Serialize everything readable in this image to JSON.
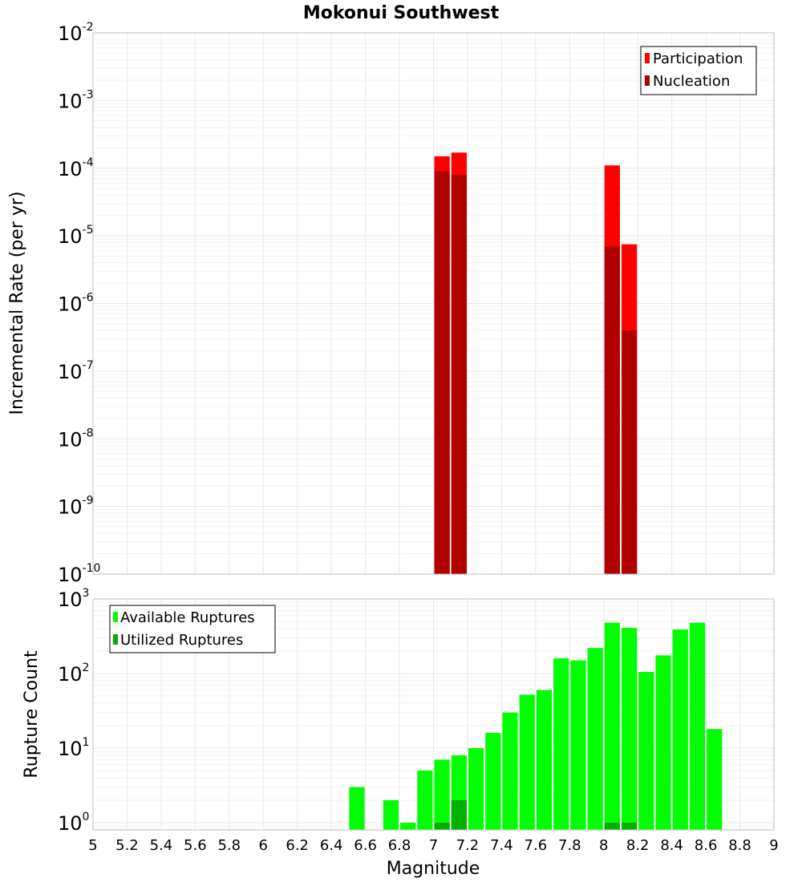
{
  "chart_data": [
    {
      "type": "bar",
      "title": "Mokonui Southwest",
      "xlabel": "",
      "ylabel": "Incremental Rate (per yr)",
      "yscale": "log",
      "ylim": [
        1e-10,
        0.01
      ],
      "xlim": [
        5,
        9
      ],
      "bin_width": 0.1,
      "y_tick_labels": [
        {
          "base": "10",
          "exp": "-10"
        },
        {
          "base": "10",
          "exp": "-9"
        },
        {
          "base": "10",
          "exp": "-8"
        },
        {
          "base": "10",
          "exp": "-7"
        },
        {
          "base": "10",
          "exp": "-6"
        },
        {
          "base": "10",
          "exp": "-5"
        },
        {
          "base": "10",
          "exp": "-4"
        },
        {
          "base": "10",
          "exp": "-3"
        },
        {
          "base": "10",
          "exp": "-2"
        }
      ],
      "grid": true,
      "legend_position": "top-right",
      "series": [
        {
          "name": "Participation",
          "color": "#ff0000",
          "x": [
            7.05,
            7.15,
            8.05,
            8.15
          ],
          "values": [
            0.00015,
            0.00017,
            0.00011,
            7.5e-06
          ]
        },
        {
          "name": "Nucleation",
          "color": "#b00000",
          "x": [
            7.05,
            7.15,
            8.05,
            8.15
          ],
          "values": [
            9e-05,
            8e-05,
            7e-06,
            4e-07
          ]
        }
      ]
    },
    {
      "type": "bar",
      "title": "",
      "xlabel": "Magnitude",
      "ylabel": "Rupture Count",
      "yscale": "log",
      "ylim": [
        0.8,
        1000
      ],
      "xlim": [
        5,
        9
      ],
      "bin_width": 0.1,
      "x_tick_labels": [
        "5",
        "5.2",
        "5.4",
        "5.6",
        "5.8",
        "6",
        "6.2",
        "6.4",
        "6.6",
        "6.8",
        "7",
        "7.2",
        "7.4",
        "7.6",
        "7.8",
        "8",
        "8.2",
        "8.4",
        "8.6",
        "8.8",
        "9"
      ],
      "y_tick_labels": [
        {
          "base": "10",
          "exp": "0"
        },
        {
          "base": "10",
          "exp": "1"
        },
        {
          "base": "10",
          "exp": "2"
        },
        {
          "base": "10",
          "exp": "3"
        }
      ],
      "grid": true,
      "legend_position": "top-left",
      "series": [
        {
          "name": "Available Ruptures",
          "color": "#00ff00",
          "x": [
            6.55,
            6.75,
            6.85,
            6.95,
            7.05,
            7.15,
            7.25,
            7.35,
            7.45,
            7.55,
            7.65,
            7.75,
            7.85,
            7.95,
            8.05,
            8.15,
            8.25,
            8.35,
            8.45,
            8.55,
            8.65
          ],
          "values": [
            3,
            2,
            1,
            5,
            7,
            8,
            10,
            16,
            30,
            52,
            60,
            160,
            150,
            220,
            480,
            410,
            105,
            175,
            390,
            480,
            18
          ]
        },
        {
          "name": "Utilized Ruptures",
          "color": "#00b000",
          "x": [
            7.05,
            7.15,
            8.05,
            8.15
          ],
          "values": [
            1,
            2,
            1,
            1
          ]
        }
      ]
    }
  ]
}
